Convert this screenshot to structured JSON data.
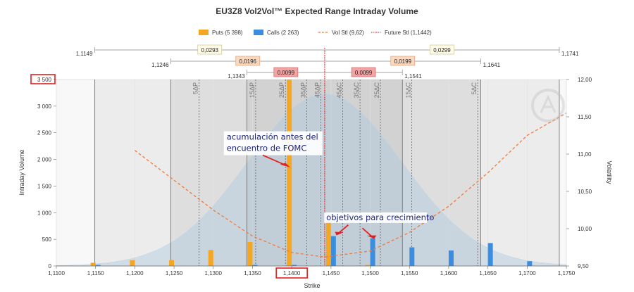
{
  "chart_data": {
    "type": "bar",
    "title": "EU3Z8 Vol2Vol™ Expected Range Intraday Volume",
    "xlabel": "Strike",
    "ylabel_left": "Intraday Volume",
    "ylabel_right": "Volatility",
    "xlim": [
      1.11,
      1.175
    ],
    "ylim_left": [
      0,
      3500
    ],
    "ylim_right": [
      9.5,
      12.0
    ],
    "x_ticks": [
      "1,1100",
      "1,1150",
      "1,1200",
      "1,1250",
      "1,1300",
      "1,1350",
      "1,1400",
      "1,1450",
      "1,1500",
      "1,1550",
      "1,1600",
      "1,1650",
      "1,1700",
      "1,1750"
    ],
    "y_ticks_left": [
      "0",
      "500",
      "1 000",
      "1 500",
      "2 000",
      "2 500",
      "3 000",
      "3 500"
    ],
    "y_ticks_right": [
      "9,50",
      "10,00",
      "10,50",
      "11,00",
      "11,50",
      "12,00"
    ],
    "legend": [
      {
        "label": "Puts (5 398)",
        "color": "#f5a623",
        "kind": "box"
      },
      {
        "label": "Calls (2 263)",
        "color": "#3b8de0",
        "kind": "box"
      },
      {
        "label": "Vol Stl (9,62)",
        "color": "#f07a3a",
        "kind": "dash"
      },
      {
        "label": "Future Stl (1,1442)",
        "color": "#d0312d",
        "kind": "dot"
      }
    ],
    "series": [
      {
        "name": "Puts",
        "color": "#f5a623",
        "points": [
          {
            "x": 1.115,
            "y": 60
          },
          {
            "x": 1.12,
            "y": 110
          },
          {
            "x": 1.125,
            "y": 110
          },
          {
            "x": 1.13,
            "y": 300
          },
          {
            "x": 1.135,
            "y": 450
          },
          {
            "x": 1.14,
            "y": 3500
          },
          {
            "x": 1.145,
            "y": 850
          },
          {
            "x": 1.15,
            "y": 20
          }
        ]
      },
      {
        "name": "Calls",
        "color": "#3b8de0",
        "points": [
          {
            "x": 1.115,
            "y": 20
          },
          {
            "x": 1.135,
            "y": 20
          },
          {
            "x": 1.14,
            "y": 20
          },
          {
            "x": 1.145,
            "y": 560
          },
          {
            "x": 1.15,
            "y": 520
          },
          {
            "x": 1.155,
            "y": 350
          },
          {
            "x": 1.16,
            "y": 290
          },
          {
            "x": 1.165,
            "y": 430
          },
          {
            "x": 1.17,
            "y": 90
          }
        ]
      },
      {
        "name": "Vol Stl",
        "color": "#f07a3a",
        "points": [
          {
            "x": 1.12,
            "y": 11.05
          },
          {
            "x": 1.125,
            "y": 10.65
          },
          {
            "x": 1.13,
            "y": 10.25
          },
          {
            "x": 1.135,
            "y": 9.9
          },
          {
            "x": 1.14,
            "y": 9.68
          },
          {
            "x": 1.1442,
            "y": 9.62
          },
          {
            "x": 1.15,
            "y": 9.7
          },
          {
            "x": 1.155,
            "y": 9.95
          },
          {
            "x": 1.16,
            "y": 10.3
          },
          {
            "x": 1.165,
            "y": 10.75
          },
          {
            "x": 1.17,
            "y": 11.25
          },
          {
            "x": 1.175,
            "y": 11.55
          }
        ]
      }
    ],
    "future_settle": 1.1442,
    "distribution_peak_y": 3230,
    "distribution_sigma": 0.0098,
    "delta_lines": [
      {
        "label": "5ΔP",
        "x": 1.1282
      },
      {
        "label": "15ΔP",
        "x": 1.1354
      },
      {
        "label": "25ΔP",
        "x": 1.1392
      },
      {
        "label": "35ΔP",
        "x": 1.1419
      },
      {
        "label": "45ΔP",
        "x": 1.1437
      },
      {
        "label": "45ΔC",
        "x": 1.1465
      },
      {
        "label": "35ΔC",
        "x": 1.1487
      },
      {
        "label": "25ΔC",
        "x": 1.1513
      },
      {
        "label": "15ΔC",
        "x": 1.1553
      },
      {
        "label": "5ΔC",
        "x": 1.1637
      }
    ],
    "ranges": [
      {
        "left_label": "1,1149",
        "right_label": "1,1741",
        "left": 1.1149,
        "right": 1.1741,
        "box_left": "0,0293",
        "box_right": "0,0299",
        "box_color": "#fffbe6",
        "box_border": "#c9c39a",
        "shade": "#ececec"
      },
      {
        "left_label": "1,1246",
        "right_label": "1,1641",
        "left": 1.1246,
        "right": 1.1641,
        "box_left": "0,0196",
        "box_right": "0,0199",
        "box_color": "#fbd9c0",
        "box_border": "#d9a27a",
        "shade": "#dedede"
      },
      {
        "left_label": "1,1343",
        "right_label": "1,1541",
        "left": 1.1343,
        "right": 1.1541,
        "box_left": "0,0099",
        "box_right": "0,0099",
        "box_color": "#f3a3a3",
        "box_border": "#c86b6b",
        "shade": "#d2d2d2"
      }
    ],
    "annotations": [
      {
        "lines": [
          "acumulación antes del",
          "encuentro de FOMC"
        ],
        "x": 1.1317,
        "y": 2370
      },
      {
        "lines": [
          "objetivos para crecimiento"
        ],
        "x": 1.1444,
        "y": 860
      }
    ],
    "highlighted": {
      "y_tick": "3 500",
      "x_tick": "1,1400"
    }
  }
}
